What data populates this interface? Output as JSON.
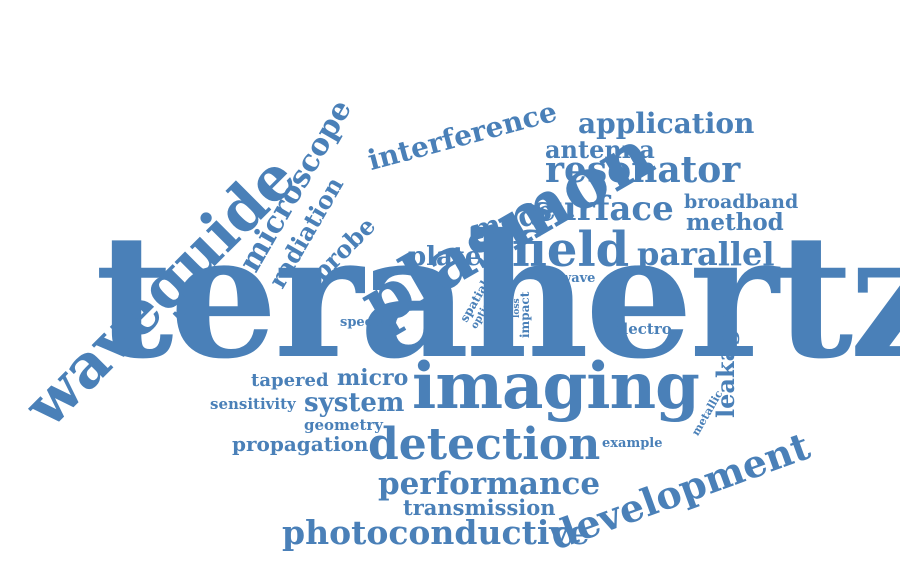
{
  "colors": {
    "word": "#4a80b8",
    "background": "#ffffff"
  },
  "words": {
    "terahertz": "terahertz",
    "waveguide": "waveguide",
    "plasmon": "plasmon",
    "imaging": "imaging",
    "field": "field",
    "detection": "detection",
    "development": "development",
    "resonator": "resonator",
    "surface": "surface",
    "parallel": "parallel",
    "microscope": "microscope",
    "interference": "interference",
    "application": "application",
    "antenna": "antenna",
    "radiation": "radiation",
    "probe": "probe",
    "mode": "mode",
    "plate": "plate",
    "broadband": "broadband",
    "method": "method",
    "wave": "wave",
    "specific": "specific",
    "spatial": "spatial",
    "optic": "optic",
    "loss": "loss",
    "impact": "impact",
    "electro": "electro",
    "leakage": "leakage",
    "metallic": "metallic",
    "tapered": "tapered",
    "micro": "micro",
    "sensitivity": "sensitivity",
    "system": "system",
    "geometry": "geometry",
    "propagation": "propagation",
    "example": "example",
    "performance": "performance",
    "transmission": "transmission",
    "photoconductive": "photoconductive"
  }
}
